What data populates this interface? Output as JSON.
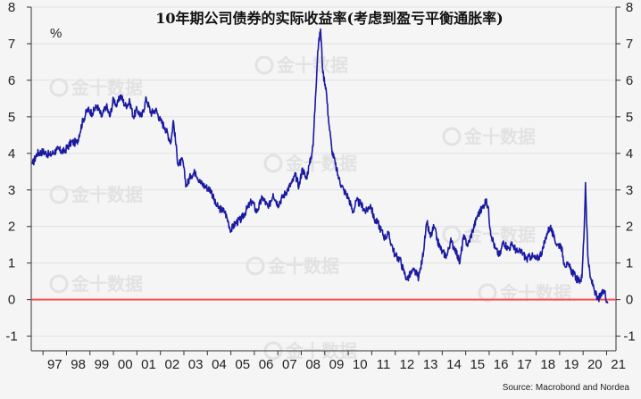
{
  "chart_data": {
    "type": "line",
    "title": "10年期公司债券的实际收益率(考虑到盈亏平衡通胀率)",
    "ylabel": "%",
    "ylim": [
      -1.4,
      8
    ],
    "yticks": [
      -1,
      0,
      1,
      2,
      3,
      4,
      5,
      6,
      7,
      8
    ],
    "xlim": [
      1996.5,
      2021.4
    ],
    "xticks": [
      "97",
      "98",
      "99",
      "00",
      "01",
      "02",
      "03",
      "04",
      "05",
      "06",
      "07",
      "08",
      "09",
      "10",
      "11",
      "12",
      "13",
      "14",
      "15",
      "16",
      "17",
      "18",
      "19",
      "20",
      "21"
    ],
    "grid": true,
    "source": "Source: Macrobond and Nordea",
    "watermark": "金十数据",
    "reference_line": {
      "y": 0,
      "color": "#ff4d4d"
    },
    "series": [
      {
        "color": "#1a1aa0",
        "points": [
          [
            1996.55,
            3.7
          ],
          [
            1996.75,
            4.0
          ],
          [
            1997.0,
            4.05
          ],
          [
            1997.3,
            3.95
          ],
          [
            1997.6,
            4.1
          ],
          [
            1997.9,
            4.05
          ],
          [
            1998.2,
            4.3
          ],
          [
            1998.45,
            4.3
          ],
          [
            1998.7,
            4.9
          ],
          [
            1998.9,
            5.2
          ],
          [
            1999.1,
            5.1
          ],
          [
            1999.3,
            5.3
          ],
          [
            1999.5,
            5.0
          ],
          [
            1999.7,
            5.3
          ],
          [
            1999.85,
            5.0
          ],
          [
            2000.0,
            5.5
          ],
          [
            2000.15,
            5.3
          ],
          [
            2000.3,
            5.6
          ],
          [
            2000.5,
            5.3
          ],
          [
            2000.7,
            5.4
          ],
          [
            2000.85,
            5.0
          ],
          [
            2001.0,
            5.2
          ],
          [
            2001.2,
            5.0
          ],
          [
            2001.4,
            5.5
          ],
          [
            2001.6,
            5.1
          ],
          [
            2001.8,
            5.2
          ],
          [
            2002.0,
            4.9
          ],
          [
            2002.2,
            4.7
          ],
          [
            2002.45,
            4.3
          ],
          [
            2002.55,
            4.9
          ],
          [
            2002.75,
            3.7
          ],
          [
            2002.95,
            3.8
          ],
          [
            2003.1,
            3.1
          ],
          [
            2003.3,
            3.4
          ],
          [
            2003.5,
            3.5
          ],
          [
            2003.7,
            3.2
          ],
          [
            2003.9,
            3.1
          ],
          [
            2004.15,
            3.0
          ],
          [
            2004.35,
            2.6
          ],
          [
            2004.5,
            2.5
          ],
          [
            2004.75,
            2.4
          ],
          [
            2004.9,
            2.1
          ],
          [
            2005.0,
            1.9
          ],
          [
            2005.2,
            2.1
          ],
          [
            2005.45,
            2.2
          ],
          [
            2005.7,
            2.5
          ],
          [
            2005.9,
            2.7
          ],
          [
            2006.1,
            2.4
          ],
          [
            2006.35,
            2.8
          ],
          [
            2006.6,
            2.5
          ],
          [
            2006.8,
            2.9
          ],
          [
            2007.0,
            2.6
          ],
          [
            2007.2,
            2.8
          ],
          [
            2007.4,
            3.0
          ],
          [
            2007.6,
            3.2
          ],
          [
            2007.75,
            3.4
          ],
          [
            2007.9,
            3.1
          ],
          [
            2008.05,
            3.6
          ],
          [
            2008.2,
            3.3
          ],
          [
            2008.35,
            3.7
          ],
          [
            2008.5,
            4.2
          ],
          [
            2008.6,
            5.5
          ],
          [
            2008.7,
            6.8
          ],
          [
            2008.82,
            7.4
          ],
          [
            2008.92,
            6.2
          ],
          [
            2009.05,
            5.8
          ],
          [
            2009.15,
            5.0
          ],
          [
            2009.3,
            4.1
          ],
          [
            2009.45,
            3.7
          ],
          [
            2009.6,
            3.3
          ],
          [
            2009.8,
            3.0
          ],
          [
            2010.0,
            2.8
          ],
          [
            2010.2,
            2.4
          ],
          [
            2010.35,
            2.7
          ],
          [
            2010.55,
            2.6
          ],
          [
            2010.75,
            2.4
          ],
          [
            2010.95,
            2.6
          ],
          [
            2011.1,
            2.2
          ],
          [
            2011.25,
            2.1
          ],
          [
            2011.4,
            1.9
          ],
          [
            2011.55,
            1.7
          ],
          [
            2011.7,
            1.8
          ],
          [
            2011.85,
            1.5
          ],
          [
            2012.0,
            1.2
          ],
          [
            2012.2,
            1.1
          ],
          [
            2012.35,
            0.8
          ],
          [
            2012.5,
            0.55
          ],
          [
            2012.65,
            0.7
          ],
          [
            2012.8,
            0.8
          ],
          [
            2013.0,
            0.6
          ],
          [
            2013.15,
            1.1
          ],
          [
            2013.35,
            2.1
          ],
          [
            2013.5,
            1.7
          ],
          [
            2013.65,
            2.0
          ],
          [
            2013.8,
            1.6
          ],
          [
            2014.0,
            1.3
          ],
          [
            2014.2,
            1.2
          ],
          [
            2014.35,
            1.6
          ],
          [
            2014.55,
            1.4
          ],
          [
            2014.75,
            1.0
          ],
          [
            2014.9,
            1.7
          ],
          [
            2015.1,
            1.5
          ],
          [
            2015.3,
            1.9
          ],
          [
            2015.5,
            2.3
          ],
          [
            2015.7,
            2.5
          ],
          [
            2015.85,
            2.7
          ],
          [
            2015.95,
            2.55
          ],
          [
            2016.05,
            1.9
          ],
          [
            2016.25,
            1.4
          ],
          [
            2016.45,
            1.2
          ],
          [
            2016.6,
            1.6
          ],
          [
            2016.8,
            1.4
          ],
          [
            2017.0,
            1.5
          ],
          [
            2017.2,
            1.3
          ],
          [
            2017.4,
            1.3
          ],
          [
            2017.6,
            1.1
          ],
          [
            2017.8,
            1.2
          ],
          [
            2018.0,
            1.1
          ],
          [
            2018.15,
            1.2
          ],
          [
            2018.3,
            1.4
          ],
          [
            2018.45,
            1.8
          ],
          [
            2018.6,
            2.0
          ],
          [
            2018.75,
            1.7
          ],
          [
            2018.9,
            1.5
          ],
          [
            2019.05,
            1.5
          ],
          [
            2019.2,
            1.0
          ],
          [
            2019.4,
            0.9
          ],
          [
            2019.6,
            0.7
          ],
          [
            2019.8,
            0.5
          ],
          [
            2019.95,
            0.6
          ],
          [
            2020.05,
            2.0
          ],
          [
            2020.1,
            3.2
          ],
          [
            2020.2,
            1.2
          ],
          [
            2020.3,
            0.6
          ],
          [
            2020.45,
            0.35
          ],
          [
            2020.6,
            0.0
          ],
          [
            2020.75,
            0.1
          ],
          [
            2020.9,
            0.25
          ],
          [
            2021.05,
            -0.1
          ]
        ]
      }
    ]
  }
}
